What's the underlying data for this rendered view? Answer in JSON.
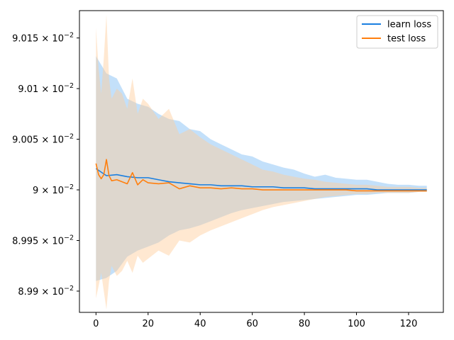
{
  "chart_data": {
    "type": "line",
    "title": "",
    "xlabel": "",
    "ylabel": "",
    "xlim": [
      -6.35,
      133.35
    ],
    "ylim": [
      0.089879,
      0.090177
    ],
    "x_ticks": [
      {
        "value": 0,
        "label": "0"
      },
      {
        "value": 20,
        "label": "20"
      },
      {
        "value": 40,
        "label": "40"
      },
      {
        "value": 60,
        "label": "60"
      },
      {
        "value": 80,
        "label": "80"
      },
      {
        "value": 100,
        "label": "100"
      },
      {
        "value": 120,
        "label": "120"
      }
    ],
    "y_ticks": [
      {
        "value": 0.0899,
        "mantissa": "8.99",
        "exp": "−2"
      },
      {
        "value": 0.08995,
        "mantissa": "8.995",
        "exp": "−2"
      },
      {
        "value": 0.09,
        "mantissa": "9",
        "exp": "−2"
      },
      {
        "value": 0.09005,
        "mantissa": "9.005",
        "exp": "−2"
      },
      {
        "value": 0.0901,
        "mantissa": "9.01",
        "exp": "−2"
      },
      {
        "value": 0.09015,
        "mantissa": "9.015",
        "exp": "−2"
      }
    ],
    "legend": {
      "position": "top-right"
    },
    "series": [
      {
        "name": "learn loss",
        "color": "#1f77b4",
        "line_color": "#1a7fe0",
        "band_color": "#88c1f5",
        "x": [
          0,
          4,
          8,
          12,
          16,
          20,
          24,
          28,
          32,
          36,
          40,
          44,
          48,
          52,
          56,
          60,
          64,
          68,
          72,
          76,
          80,
          84,
          88,
          92,
          96,
          100,
          104,
          108,
          112,
          116,
          120,
          124,
          127
        ],
        "mean": [
          0.090021,
          0.090014,
          0.090015,
          0.090013,
          0.090012,
          0.090012,
          0.09001,
          0.090008,
          0.090007,
          0.090006,
          0.090005,
          0.090005,
          0.090004,
          0.090004,
          0.090004,
          0.090003,
          0.090003,
          0.090003,
          0.090002,
          0.090002,
          0.090002,
          0.090001,
          0.090001,
          0.090001,
          0.090001,
          0.090001,
          0.090001,
          0.09,
          0.09,
          0.09,
          0.09,
          0.09,
          0.09
        ],
        "upper": [
          0.090132,
          0.090115,
          0.09011,
          0.09009,
          0.090085,
          0.090082,
          0.090075,
          0.09007,
          0.090068,
          0.09006,
          0.090058,
          0.09005,
          0.090045,
          0.09004,
          0.090035,
          0.090033,
          0.090028,
          0.090025,
          0.090022,
          0.09002,
          0.090016,
          0.090013,
          0.090015,
          0.090012,
          0.090011,
          0.09001,
          0.09001,
          0.090008,
          0.090006,
          0.090005,
          0.090005,
          0.090004,
          0.090004
        ],
        "lower": [
          0.08991,
          0.089913,
          0.08992,
          0.089934,
          0.08994,
          0.089944,
          0.089948,
          0.089955,
          0.08996,
          0.089962,
          0.089965,
          0.089969,
          0.089973,
          0.089977,
          0.08998,
          0.089982,
          0.089984,
          0.089986,
          0.089988,
          0.089989,
          0.08999,
          0.089991,
          0.089992,
          0.089993,
          0.089994,
          0.089995,
          0.089995,
          0.089996,
          0.089997,
          0.089997,
          0.089997,
          0.089998,
          0.089998
        ]
      },
      {
        "name": "test loss",
        "color": "#ff7f0e",
        "line_color": "#ff7f0e",
        "band_color": "#ffcc99",
        "x": [
          0,
          1,
          2,
          3,
          4,
          5,
          6,
          8,
          10,
          12,
          14,
          16,
          18,
          20,
          24,
          28,
          32,
          36,
          40,
          44,
          48,
          52,
          56,
          60,
          64,
          68,
          72,
          76,
          80,
          84,
          88,
          92,
          96,
          100,
          104,
          108,
          112,
          116,
          120,
          124,
          127
        ],
        "mean": [
          0.090026,
          0.090015,
          0.090011,
          0.090015,
          0.09003,
          0.090014,
          0.090009,
          0.09001,
          0.090008,
          0.090006,
          0.090017,
          0.090005,
          0.09001,
          0.090007,
          0.090006,
          0.090007,
          0.090001,
          0.090004,
          0.090002,
          0.090002,
          0.090001,
          0.090002,
          0.090001,
          0.090001,
          0.09,
          0.09,
          0.09,
          0.09,
          0.09,
          0.09,
          0.09,
          0.09,
          0.09,
          0.089999,
          0.089999,
          0.089999,
          0.089999,
          0.089999,
          0.089999,
          0.089999,
          0.089999
        ],
        "upper": [
          0.09016,
          0.09012,
          0.090095,
          0.09013,
          0.090173,
          0.09011,
          0.09009,
          0.0901,
          0.090095,
          0.09008,
          0.09011,
          0.090075,
          0.09009,
          0.090085,
          0.09007,
          0.09008,
          0.090055,
          0.09006,
          0.090052,
          0.090045,
          0.09004,
          0.090035,
          0.09003,
          0.090025,
          0.09002,
          0.090018,
          0.090015,
          0.090013,
          0.090011,
          0.09001,
          0.090008,
          0.090007,
          0.090006,
          0.090005,
          0.090005,
          0.090004,
          0.090003,
          0.090003,
          0.090003,
          0.090002,
          0.090002
        ],
        "lower": [
          0.089893,
          0.089905,
          0.089918,
          0.0899,
          0.089882,
          0.08991,
          0.089925,
          0.089915,
          0.08992,
          0.08993,
          0.089918,
          0.089935,
          0.089928,
          0.089932,
          0.08994,
          0.089935,
          0.08995,
          0.089948,
          0.089955,
          0.08996,
          0.089964,
          0.089968,
          0.089972,
          0.089976,
          0.08998,
          0.089983,
          0.089985,
          0.089987,
          0.089989,
          0.089991,
          0.089993,
          0.089994,
          0.089995,
          0.089996,
          0.089996,
          0.089997,
          0.089997,
          0.089997,
          0.089997,
          0.089998,
          0.089998
        ]
      }
    ]
  }
}
